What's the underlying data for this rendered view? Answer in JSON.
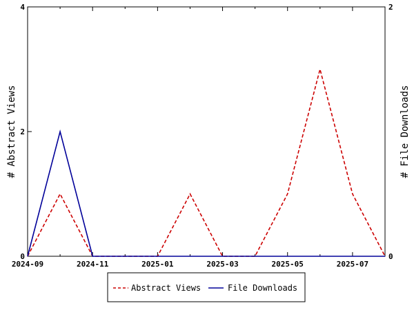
{
  "chart_data": {
    "type": "line",
    "x": [
      "2024-09",
      "2024-10",
      "2024-11",
      "2024-12",
      "2025-01",
      "2025-02",
      "2025-03",
      "2025-04",
      "2025-05",
      "2025-06",
      "2025-07",
      "2025-08"
    ],
    "x_tick_labels": [
      "2024-09",
      "2024-11",
      "2025-01",
      "2025-03",
      "2025-05",
      "2025-07"
    ],
    "series": [
      {
        "name": "Abstract Views",
        "axis": "left",
        "color": "#cc0000",
        "style": "dashed",
        "values": [
          0,
          1,
          0,
          0,
          0,
          1,
          0,
          0,
          1,
          3,
          1,
          0
        ]
      },
      {
        "name": "File Downloads",
        "axis": "right",
        "color": "#000099",
        "style": "solid",
        "values": [
          0,
          1,
          0,
          0,
          0,
          0,
          0,
          0,
          0,
          0,
          0,
          0
        ]
      }
    ],
    "ylabel_left": "# Abstract Views",
    "ylabel_right": "# File Downloads",
    "ylim_left": [
      0,
      4
    ],
    "ylim_right": [
      0,
      2
    ],
    "yticks_left": [
      "0",
      "2",
      "4"
    ],
    "yticks_right": [
      "0",
      "2"
    ],
    "grid": false,
    "legend_position": "bottom"
  }
}
